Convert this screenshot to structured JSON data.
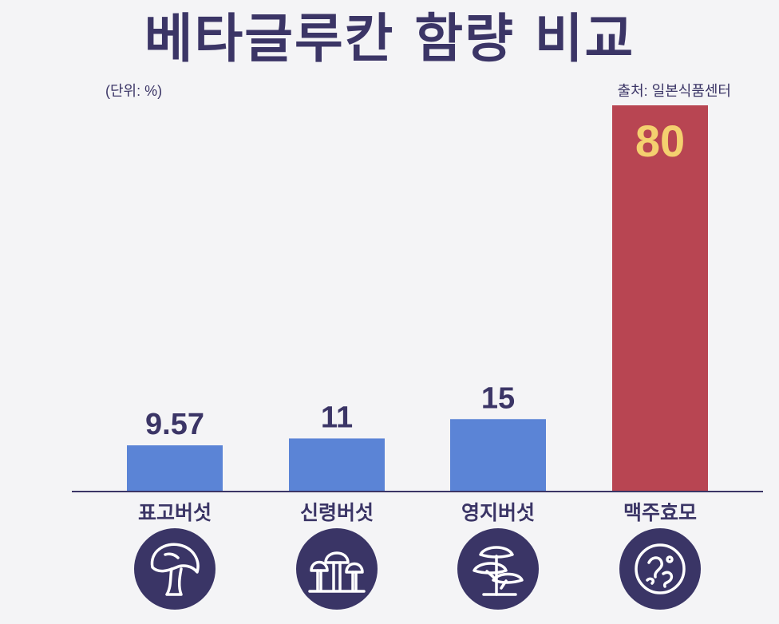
{
  "header": {
    "title": "베타글루칸 함량 비교",
    "unit": "(단위: %)",
    "source": "출처: 일본식품센터"
  },
  "chart_data": {
    "type": "bar",
    "title": "베타글루칸 함량 비교",
    "xlabel": "",
    "ylabel": "",
    "unit": "(단위: %)",
    "categories": [
      "표고버섯",
      "신령버섯",
      "영지버섯",
      "맥주효모"
    ],
    "values": [
      9.57,
      11,
      15,
      80
    ],
    "value_labels": [
      "9.57",
      "11",
      "15",
      "80"
    ],
    "ylim": [
      0,
      80
    ],
    "grid": false,
    "legend": "none"
  },
  "icons": [
    "shiitake-mushroom-icon",
    "mushroom-cluster-icon",
    "reishi-mushroom-icon",
    "yeast-cell-icon"
  ],
  "colors": {
    "background": "#f4f4f6",
    "text": "#3b3566",
    "bar": "#5b84d6",
    "highlight_bar": "#b84552",
    "highlight_label": "#f4d06f",
    "icon_circle": "#3a3566",
    "icon_line": "#ffffff"
  }
}
